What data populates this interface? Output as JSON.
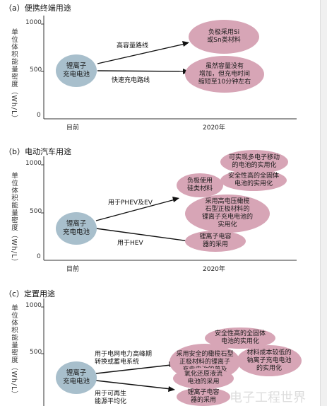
{
  "ylabel": "单位体积能量密度（Wh/L）",
  "panels": [
    {
      "title": "（a）便携终端用途",
      "yticks": [
        "1000",
        "500",
        "0"
      ],
      "xticks": [
        "目前",
        "2020年"
      ],
      "origin": "锂离子\n充电电池",
      "routes": [
        "高容量路线",
        "快速充电路线"
      ],
      "targets": [
        "负极采用Si\n或Sn类材料",
        "虽然容量没有\n增加，但充电时间\n缩短至10分钟左右"
      ]
    },
    {
      "title": "（b）电动汽车用途",
      "yticks": [
        "1000",
        "500",
        "0"
      ],
      "xticks": [
        "目前",
        "2020年"
      ],
      "origin": "锂离子\n充电电池",
      "routes": [
        "用于PHEV及EV",
        "用于HEV"
      ],
      "targets": [
        "可实现多电子移动\n的电池的实用化",
        "安全性高的全固体\n电池的实用化",
        "负极使用\n硅类材料",
        "采用高电压橄榄\n石型正极材料的\n锂离子充电电池的\n实用化",
        "锂离子电容\n器的采用"
      ]
    },
    {
      "title": "（c）定置用途",
      "yticks": [
        "1000",
        "500",
        "0"
      ],
      "origin": "锂离子\n充电电池",
      "routes": [
        "用于电网电力高峰期\n转换或蓄电系统",
        "用于可再生\n能源平均化"
      ],
      "targets": [
        "安全性高的全固体\n电池的实用化",
        "采用安全的橄榄石型\n正极材料的锂离子\n充电电池的普及",
        "材料成本较低的\n钠离子充电电池\n的实用化",
        "氧化还原液流\n电池的采用",
        "锂离子电容\n器的采用"
      ]
    }
  ],
  "watermark": "电子工程世界",
  "colors": {
    "bubble_pink": "#d7a5b6",
    "bubble_blue": "#a8bfcc"
  }
}
